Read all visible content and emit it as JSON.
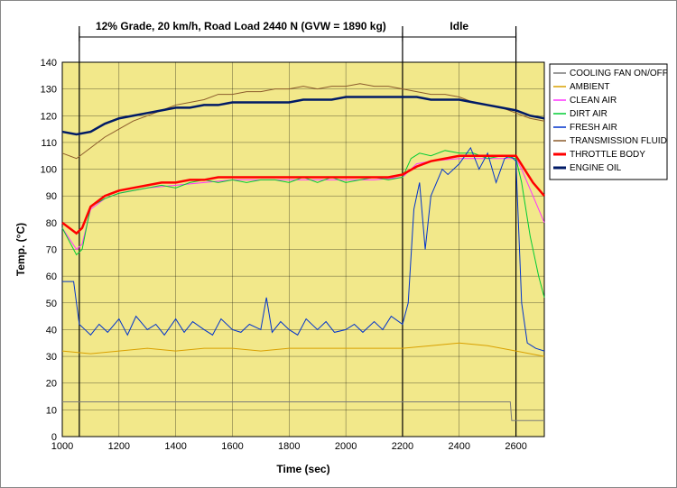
{
  "chart": {
    "type": "line",
    "background_plot": "#f2e88a",
    "background_outer": "#ffffff",
    "grid_color": "#000000",
    "xlabel": "Time (sec)",
    "ylabel": "Temp. (°C)",
    "label_fontsize": 12,
    "xlim": [
      1000,
      2700
    ],
    "ylim": [
      0,
      140
    ],
    "xtick_step": 200,
    "ytick_step": 10,
    "xticks": [
      1000,
      1200,
      1400,
      1600,
      1800,
      2000,
      2200,
      2400,
      2600
    ],
    "yticks": [
      0,
      10,
      20,
      30,
      40,
      50,
      60,
      70,
      80,
      90,
      100,
      110,
      120,
      130,
      140
    ],
    "annotations": [
      {
        "label": "12% Grade, 20 km/h, Road Load 2440 N (GVW = 1890 kg)",
        "x_start": 1060,
        "x_end": 2200
      },
      {
        "label": "Idle",
        "x_start": 2200,
        "x_end": 2600
      }
    ],
    "vlines": [
      1060,
      2200,
      2600
    ],
    "legend": {
      "position": "right",
      "items": [
        {
          "label": "COOLING FAN ON/OFF",
          "color": "#7a7a7a",
          "weight": 1
        },
        {
          "label": "AMBIENT",
          "color": "#d9a000",
          "weight": 1
        },
        {
          "label": "CLEAN AIR",
          "color": "#ff33ff",
          "weight": 1
        },
        {
          "label": "DIRT AIR",
          "color": "#00cc33",
          "weight": 1
        },
        {
          "label": "FRESH AIR",
          "color": "#0033cc",
          "weight": 1
        },
        {
          "label": "TRANSMISSION FLUID",
          "color": "#8b5a2b",
          "weight": 1
        },
        {
          "label": "THROTTLE BODY",
          "color": "#ff0000",
          "weight": 2.5
        },
        {
          "label": "ENGINE OIL",
          "color": "#001a66",
          "weight": 2.5
        }
      ]
    },
    "series": {
      "cooling_fan": {
        "color": "#7a7a7a",
        "weight": 1,
        "points": [
          [
            1000,
            13
          ],
          [
            2580,
            13
          ],
          [
            2585,
            6
          ],
          [
            2700,
            6
          ]
        ]
      },
      "ambient": {
        "color": "#d9a000",
        "weight": 1,
        "points": [
          [
            1000,
            32
          ],
          [
            1100,
            31
          ],
          [
            1200,
            32
          ],
          [
            1300,
            33
          ],
          [
            1400,
            32
          ],
          [
            1500,
            33
          ],
          [
            1600,
            33
          ],
          [
            1700,
            32
          ],
          [
            1800,
            33
          ],
          [
            1900,
            33
          ],
          [
            2000,
            33
          ],
          [
            2100,
            33
          ],
          [
            2200,
            33
          ],
          [
            2300,
            34
          ],
          [
            2400,
            35
          ],
          [
            2500,
            34
          ],
          [
            2600,
            32
          ],
          [
            2700,
            30
          ]
        ]
      },
      "clean_air": {
        "color": "#ff33ff",
        "weight": 1,
        "points": [
          [
            1000,
            78
          ],
          [
            1050,
            70
          ],
          [
            1070,
            72
          ],
          [
            1100,
            85
          ],
          [
            1150,
            89
          ],
          [
            1200,
            91
          ],
          [
            1300,
            93
          ],
          [
            1400,
            94
          ],
          [
            1500,
            95
          ],
          [
            1600,
            96
          ],
          [
            1700,
            96
          ],
          [
            1800,
            96
          ],
          [
            1900,
            96
          ],
          [
            2000,
            96
          ],
          [
            2100,
            96
          ],
          [
            2200,
            97
          ],
          [
            2250,
            102
          ],
          [
            2300,
            103
          ],
          [
            2400,
            104
          ],
          [
            2500,
            104
          ],
          [
            2600,
            104
          ],
          [
            2620,
            100
          ],
          [
            2660,
            90
          ],
          [
            2700,
            80
          ]
        ]
      },
      "dirt_air": {
        "color": "#00cc33",
        "weight": 1,
        "points": [
          [
            1000,
            78
          ],
          [
            1050,
            68
          ],
          [
            1070,
            70
          ],
          [
            1100,
            86
          ],
          [
            1150,
            89
          ],
          [
            1200,
            91
          ],
          [
            1250,
            92
          ],
          [
            1300,
            93
          ],
          [
            1350,
            94
          ],
          [
            1400,
            93
          ],
          [
            1450,
            95
          ],
          [
            1500,
            96
          ],
          [
            1550,
            95
          ],
          [
            1600,
            96
          ],
          [
            1650,
            95
          ],
          [
            1700,
            96
          ],
          [
            1750,
            96
          ],
          [
            1800,
            95
          ],
          [
            1850,
            97
          ],
          [
            1900,
            95
          ],
          [
            1950,
            97
          ],
          [
            2000,
            95
          ],
          [
            2050,
            96
          ],
          [
            2100,
            97
          ],
          [
            2150,
            96
          ],
          [
            2200,
            97
          ],
          [
            2230,
            104
          ],
          [
            2260,
            106
          ],
          [
            2300,
            105
          ],
          [
            2350,
            107
          ],
          [
            2400,
            106
          ],
          [
            2450,
            106
          ],
          [
            2500,
            104
          ],
          [
            2550,
            105
          ],
          [
            2600,
            104
          ],
          [
            2620,
            95
          ],
          [
            2650,
            75
          ],
          [
            2680,
            60
          ],
          [
            2700,
            52
          ]
        ]
      },
      "fresh_air": {
        "color": "#0033cc",
        "weight": 1,
        "points": [
          [
            1000,
            58
          ],
          [
            1040,
            58
          ],
          [
            1060,
            42
          ],
          [
            1080,
            40
          ],
          [
            1100,
            38
          ],
          [
            1130,
            42
          ],
          [
            1160,
            39
          ],
          [
            1200,
            44
          ],
          [
            1230,
            38
          ],
          [
            1260,
            45
          ],
          [
            1300,
            40
          ],
          [
            1330,
            42
          ],
          [
            1360,
            38
          ],
          [
            1400,
            44
          ],
          [
            1430,
            39
          ],
          [
            1460,
            43
          ],
          [
            1500,
            40
          ],
          [
            1530,
            38
          ],
          [
            1560,
            44
          ],
          [
            1600,
            40
          ],
          [
            1630,
            39
          ],
          [
            1660,
            42
          ],
          [
            1700,
            40
          ],
          [
            1720,
            52
          ],
          [
            1740,
            39
          ],
          [
            1770,
            43
          ],
          [
            1800,
            40
          ],
          [
            1830,
            38
          ],
          [
            1860,
            44
          ],
          [
            1900,
            40
          ],
          [
            1930,
            43
          ],
          [
            1960,
            39
          ],
          [
            2000,
            40
          ],
          [
            2030,
            42
          ],
          [
            2060,
            39
          ],
          [
            2100,
            43
          ],
          [
            2130,
            40
          ],
          [
            2160,
            45
          ],
          [
            2200,
            42
          ],
          [
            2220,
            50
          ],
          [
            2240,
            85
          ],
          [
            2260,
            95
          ],
          [
            2280,
            70
          ],
          [
            2300,
            90
          ],
          [
            2320,
            95
          ],
          [
            2340,
            100
          ],
          [
            2360,
            98
          ],
          [
            2400,
            102
          ],
          [
            2440,
            108
          ],
          [
            2470,
            100
          ],
          [
            2500,
            106
          ],
          [
            2530,
            95
          ],
          [
            2560,
            104
          ],
          [
            2580,
            105
          ],
          [
            2600,
            103
          ],
          [
            2620,
            50
          ],
          [
            2640,
            35
          ],
          [
            2670,
            33
          ],
          [
            2700,
            32
          ]
        ]
      },
      "transmission_fluid": {
        "color": "#8b5a2b",
        "weight": 1,
        "points": [
          [
            1000,
            106
          ],
          [
            1050,
            104
          ],
          [
            1100,
            108
          ],
          [
            1150,
            112
          ],
          [
            1200,
            115
          ],
          [
            1250,
            118
          ],
          [
            1300,
            120
          ],
          [
            1350,
            122
          ],
          [
            1400,
            124
          ],
          [
            1450,
            125
          ],
          [
            1500,
            126
          ],
          [
            1550,
            128
          ],
          [
            1600,
            128
          ],
          [
            1650,
            129
          ],
          [
            1700,
            129
          ],
          [
            1750,
            130
          ],
          [
            1800,
            130
          ],
          [
            1850,
            131
          ],
          [
            1900,
            130
          ],
          [
            1950,
            131
          ],
          [
            2000,
            131
          ],
          [
            2050,
            132
          ],
          [
            2100,
            131
          ],
          [
            2150,
            131
          ],
          [
            2200,
            130
          ],
          [
            2250,
            129
          ],
          [
            2300,
            128
          ],
          [
            2350,
            128
          ],
          [
            2400,
            127
          ],
          [
            2450,
            125
          ],
          [
            2500,
            124
          ],
          [
            2550,
            123
          ],
          [
            2600,
            121
          ],
          [
            2650,
            119
          ],
          [
            2700,
            118
          ]
        ]
      },
      "throttle_body": {
        "color": "#ff0000",
        "weight": 2.5,
        "points": [
          [
            1000,
            80
          ],
          [
            1050,
            76
          ],
          [
            1070,
            78
          ],
          [
            1100,
            86
          ],
          [
            1150,
            90
          ],
          [
            1200,
            92
          ],
          [
            1250,
            93
          ],
          [
            1300,
            94
          ],
          [
            1350,
            95
          ],
          [
            1400,
            95
          ],
          [
            1450,
            96
          ],
          [
            1500,
            96
          ],
          [
            1550,
            97
          ],
          [
            1600,
            97
          ],
          [
            1650,
            97
          ],
          [
            1700,
            97
          ],
          [
            1750,
            97
          ],
          [
            1800,
            97
          ],
          [
            1850,
            97
          ],
          [
            1900,
            97
          ],
          [
            1950,
            97
          ],
          [
            2000,
            97
          ],
          [
            2050,
            97
          ],
          [
            2100,
            97
          ],
          [
            2150,
            97
          ],
          [
            2200,
            98
          ],
          [
            2250,
            101
          ],
          [
            2300,
            103
          ],
          [
            2350,
            104
          ],
          [
            2400,
            105
          ],
          [
            2450,
            105
          ],
          [
            2500,
            105
          ],
          [
            2550,
            105
          ],
          [
            2600,
            105
          ],
          [
            2630,
            100
          ],
          [
            2660,
            95
          ],
          [
            2700,
            90
          ]
        ]
      },
      "engine_oil": {
        "color": "#001a66",
        "weight": 2.5,
        "points": [
          [
            1000,
            114
          ],
          [
            1050,
            113
          ],
          [
            1100,
            114
          ],
          [
            1150,
            117
          ],
          [
            1200,
            119
          ],
          [
            1250,
            120
          ],
          [
            1300,
            121
          ],
          [
            1350,
            122
          ],
          [
            1400,
            123
          ],
          [
            1450,
            123
          ],
          [
            1500,
            124
          ],
          [
            1550,
            124
          ],
          [
            1600,
            125
          ],
          [
            1650,
            125
          ],
          [
            1700,
            125
          ],
          [
            1750,
            125
          ],
          [
            1800,
            125
          ],
          [
            1850,
            126
          ],
          [
            1900,
            126
          ],
          [
            1950,
            126
          ],
          [
            2000,
            127
          ],
          [
            2050,
            127
          ],
          [
            2100,
            127
          ],
          [
            2150,
            127
          ],
          [
            2200,
            127
          ],
          [
            2250,
            127
          ],
          [
            2300,
            126
          ],
          [
            2350,
            126
          ],
          [
            2400,
            126
          ],
          [
            2450,
            125
          ],
          [
            2500,
            124
          ],
          [
            2550,
            123
          ],
          [
            2600,
            122
          ],
          [
            2650,
            120
          ],
          [
            2700,
            119
          ]
        ]
      }
    }
  }
}
